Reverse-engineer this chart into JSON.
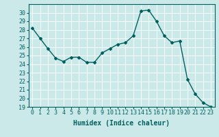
{
  "x": [
    0,
    1,
    2,
    3,
    4,
    5,
    6,
    7,
    8,
    9,
    10,
    11,
    12,
    13,
    14,
    15,
    16,
    17,
    18,
    19,
    20,
    21,
    22,
    23
  ],
  "y": [
    28.2,
    27.0,
    25.8,
    24.7,
    24.3,
    24.8,
    24.8,
    24.2,
    24.2,
    25.3,
    25.8,
    26.3,
    26.5,
    27.3,
    30.2,
    30.3,
    29.0,
    27.3,
    26.5,
    26.7,
    22.2,
    20.5,
    19.5,
    19.0
  ],
  "line_color": "#006060",
  "marker": "D",
  "marker_size": 2,
  "bg_color": "#cce9e9",
  "grid_color": "#ffffff",
  "xlabel": "Humidex (Indice chaleur)",
  "ylim": [
    19,
    31
  ],
  "xlim": [
    -0.5,
    23.5
  ],
  "yticks": [
    19,
    20,
    21,
    22,
    23,
    24,
    25,
    26,
    27,
    28,
    29,
    30
  ],
  "xticks": [
    0,
    1,
    2,
    3,
    4,
    5,
    6,
    7,
    8,
    9,
    10,
    11,
    12,
    13,
    14,
    15,
    16,
    17,
    18,
    19,
    20,
    21,
    22,
    23
  ],
  "xlabel_fontsize": 7,
  "tick_fontsize": 6,
  "line_width": 1.0
}
